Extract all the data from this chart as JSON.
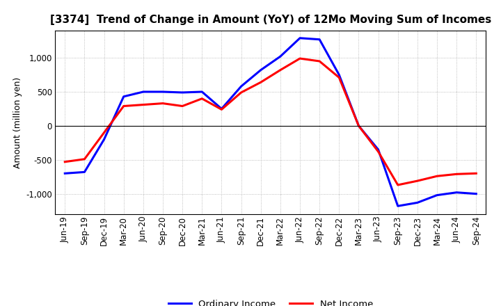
{
  "title": "[3374]  Trend of Change in Amount (YoY) of 12Mo Moving Sum of Incomes",
  "ylabel": "Amount (million yen)",
  "xlabels": [
    "Jun-19",
    "Sep-19",
    "Dec-19",
    "Mar-20",
    "Jun-20",
    "Sep-20",
    "Dec-20",
    "Mar-21",
    "Jun-21",
    "Sep-21",
    "Dec-21",
    "Mar-22",
    "Jun-22",
    "Sep-22",
    "Dec-22",
    "Mar-23",
    "Jun-23",
    "Sep-23",
    "Dec-23",
    "Mar-24",
    "Jun-24",
    "Sep-24"
  ],
  "ordinary_income": [
    -700,
    -680,
    -200,
    430,
    500,
    500,
    490,
    500,
    250,
    580,
    820,
    1020,
    1290,
    1270,
    750,
    0,
    -350,
    -1180,
    -1130,
    -1020,
    -980,
    -1000
  ],
  "net_income": [
    -530,
    -490,
    -100,
    290,
    310,
    330,
    290,
    400,
    240,
    490,
    640,
    820,
    990,
    950,
    710,
    0,
    -380,
    -870,
    -810,
    -740,
    -710,
    -700
  ],
  "ordinary_color": "#0000ff",
  "net_color": "#ff0000",
  "ylim": [
    -1300,
    1400
  ],
  "yticks": [
    -1000,
    -500,
    0,
    500,
    1000
  ],
  "background_color": "#ffffff",
  "grid_color": "#aaaaaa",
  "legend_labels": [
    "Ordinary Income",
    "Net Income"
  ],
  "line_width": 2.2,
  "title_fontsize": 11,
  "axis_fontsize": 9,
  "tick_fontsize": 8.5
}
